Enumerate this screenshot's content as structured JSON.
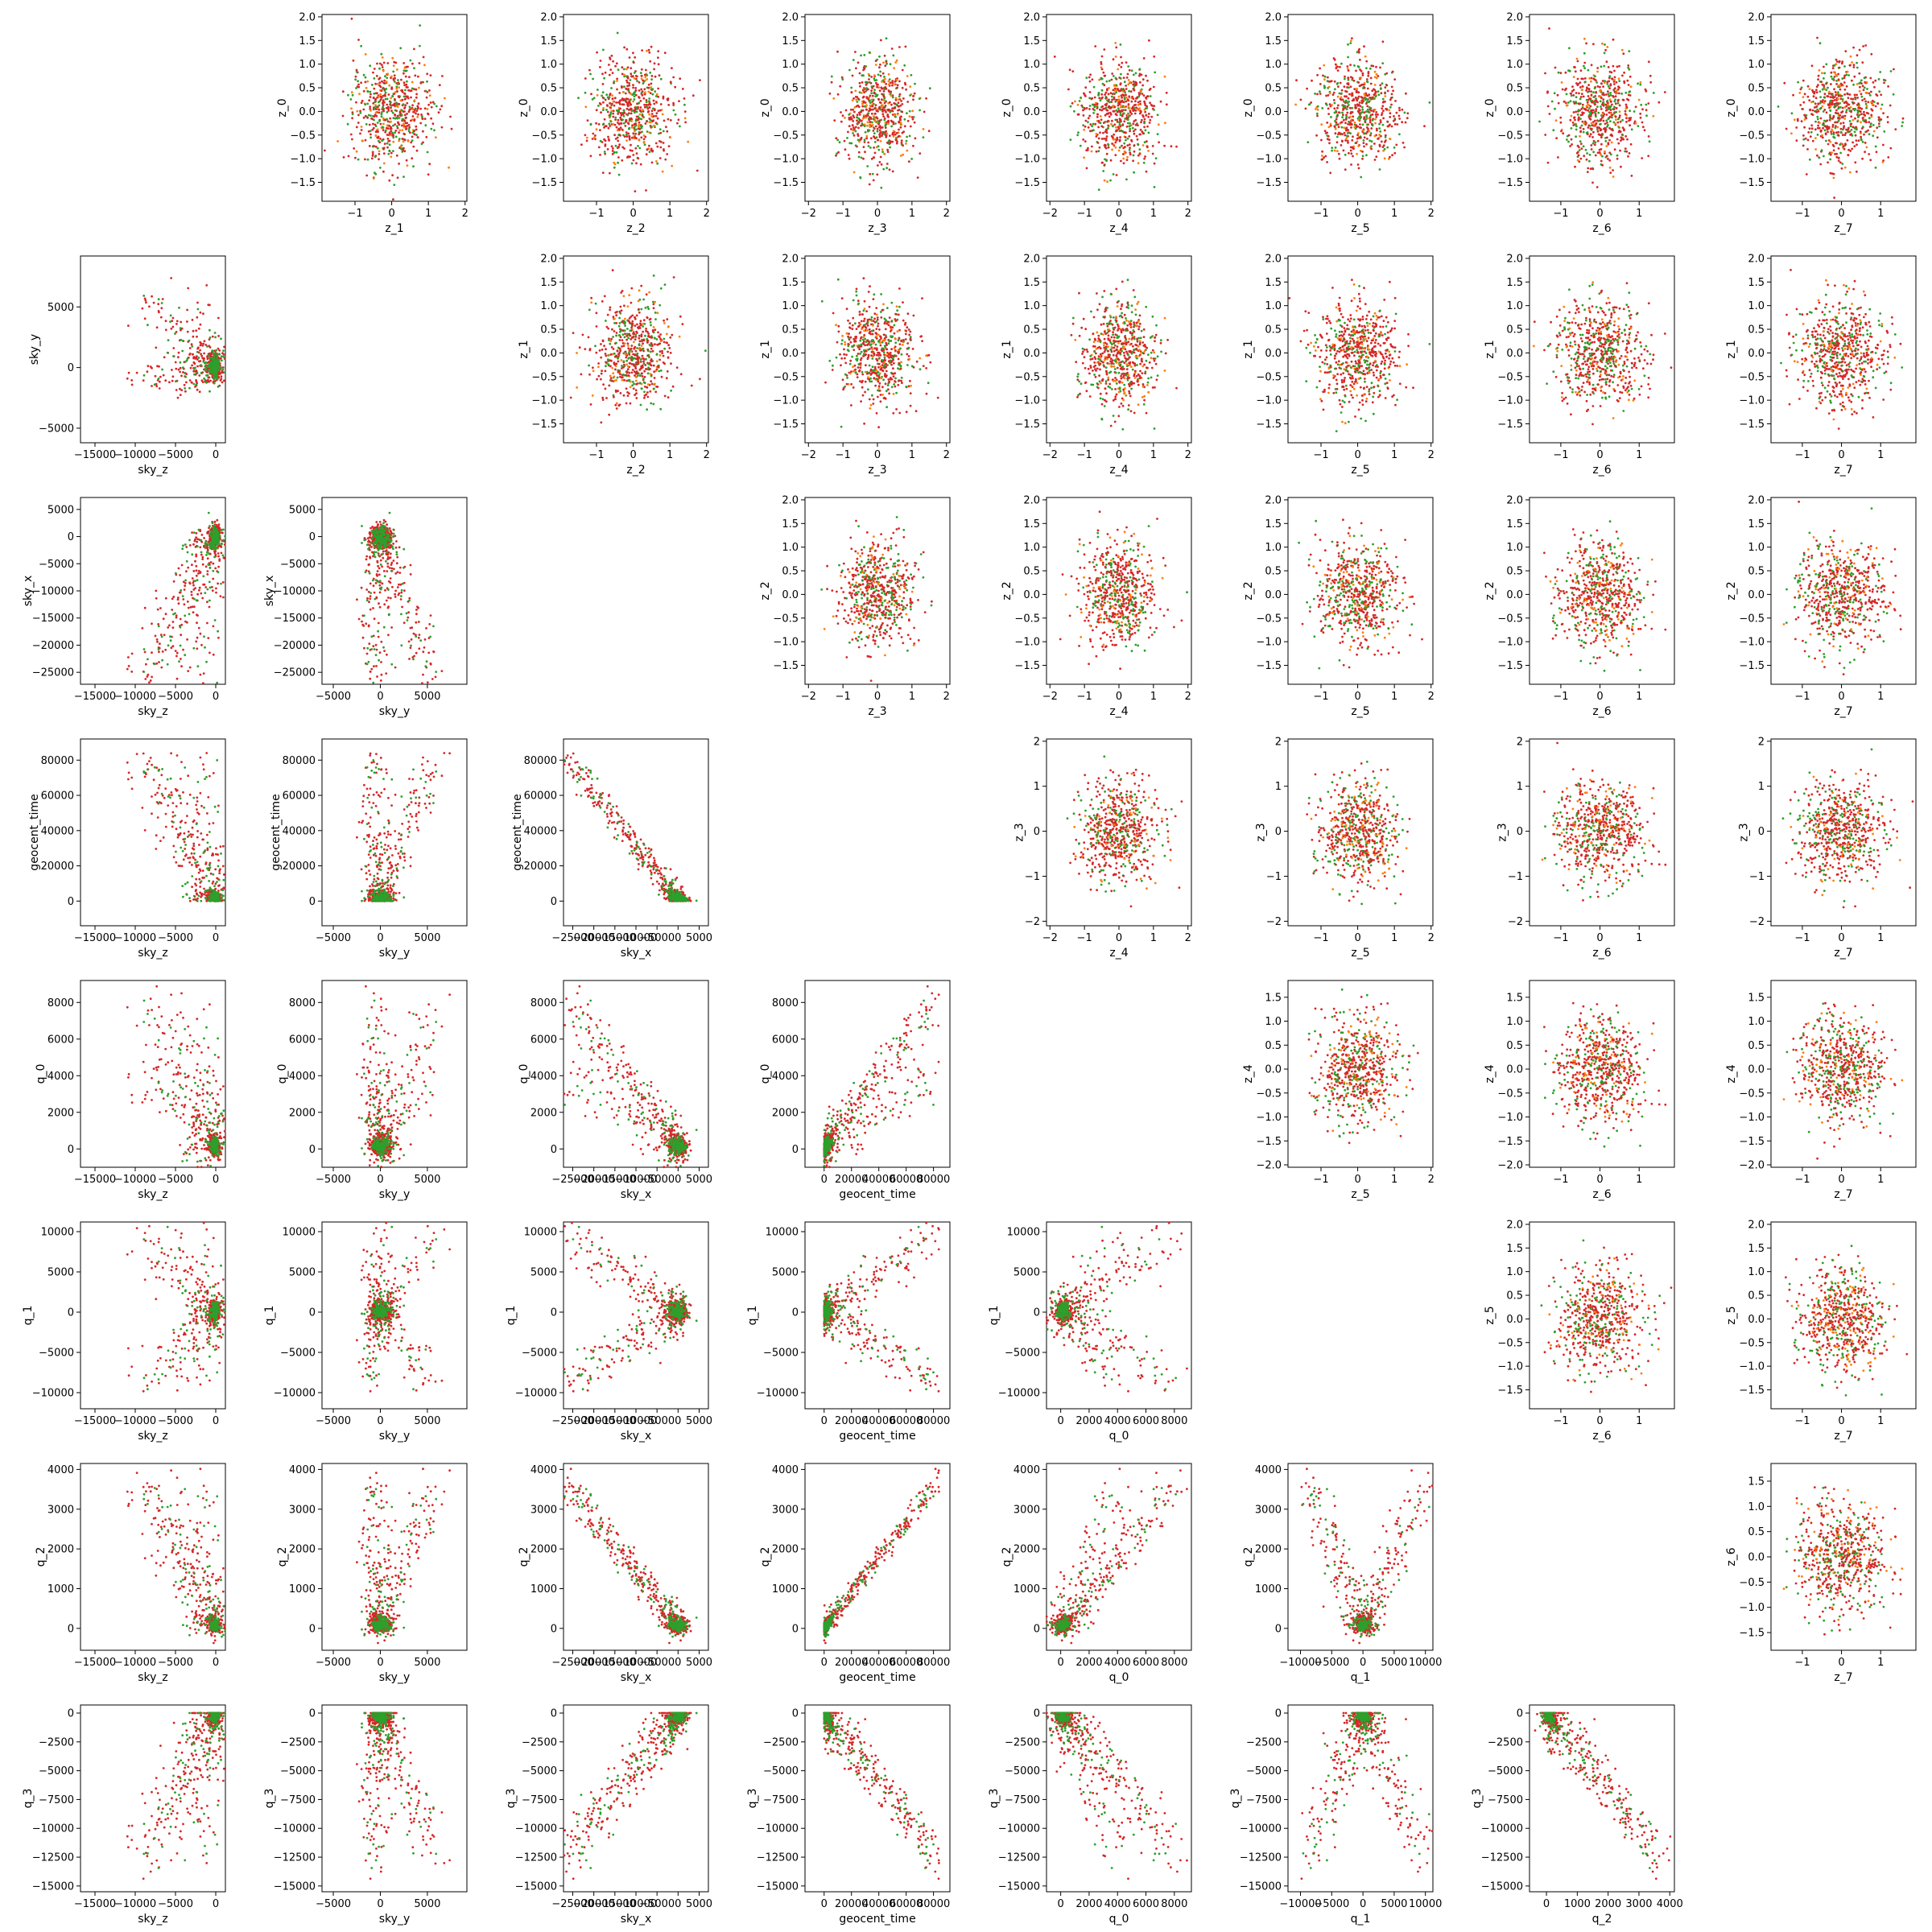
{
  "chart_data": {
    "type": "scatter",
    "layout": "pair-grid",
    "description_note": "",
    "series_colors": {
      "primary": "#d62728",
      "secondary": "#2ca02c",
      "overlap": "#ff7f0e"
    },
    "variables": [
      {
        "key": "sky_z",
        "label": "sky_z",
        "ticks": [
          -15000,
          -10000,
          -5000,
          0
        ],
        "tick_labels": [
          "−15000",
          "−10000",
          "−5000",
          "0"
        ],
        "range": [
          -16800,
          1200
        ]
      },
      {
        "key": "sky_y",
        "label": "sky_y",
        "ticks": [
          -5000,
          0,
          5000
        ],
        "tick_labels": [
          "−5000",
          "0",
          "5000"
        ],
        "range": [
          -6200,
          9200
        ]
      },
      {
        "key": "sky_x",
        "label": "sky_x",
        "ticks": [
          -25000,
          -20000,
          -15000,
          -10000,
          -5000,
          0,
          5000
        ],
        "tick_labels": [
          "−25000",
          "−20000",
          "−15000",
          "−10000",
          "−5000",
          "0",
          "5000"
        ],
        "range": [
          -27200,
          7200
        ]
      },
      {
        "key": "geocent_time",
        "label": "geocent_time",
        "ticks": [
          0,
          20000,
          40000,
          60000,
          80000
        ],
        "tick_labels": [
          "0",
          "20000",
          "40000",
          "60000",
          "80000"
        ],
        "range": [
          -14000,
          92000
        ]
      },
      {
        "key": "q_0",
        "label": "q_0",
        "ticks": [
          0,
          2000,
          4000,
          6000,
          8000
        ],
        "tick_labels": [
          "0",
          "2000",
          "4000",
          "6000",
          "8000"
        ],
        "range": [
          -1000,
          9200
        ]
      },
      {
        "key": "q_1",
        "label": "q_1",
        "ticks": [
          -10000,
          -5000,
          0,
          5000,
          10000
        ],
        "tick_labels": [
          "−10000",
          "−5000",
          "0",
          "5000",
          "10000"
        ],
        "range": [
          -12000,
          11200
        ]
      },
      {
        "key": "q_2",
        "label": "q_2",
        "ticks": [
          0,
          1000,
          2000,
          3000,
          4000
        ],
        "tick_labels": [
          "0",
          "1000",
          "2000",
          "3000",
          "4000"
        ],
        "range": [
          -550,
          4150
        ]
      },
      {
        "key": "q_3",
        "label": "q_3",
        "ticks": [
          -15000,
          -12500,
          -10000,
          -7500,
          -5000,
          -2500,
          0
        ],
        "tick_labels": [
          "−15000",
          "−12500",
          "−10000",
          "−7500",
          "−5000",
          "−2500",
          "0"
        ],
        "range": [
          -15500,
          700
        ]
      }
    ],
    "xlabels": [
      "z_1",
      "z_2",
      "z_3",
      "z_4",
      "z_5",
      "z_6",
      "z_7"
    ],
    "ylabels": [
      "z_0",
      "z_1",
      "z_2",
      "z_3",
      "z_4",
      "z_5",
      "z_6"
    ],
    "z_tick_sets": {
      "z0": {
        "ticks": [
          -1.5,
          -1.0,
          -0.5,
          0.0,
          0.5,
          1.0,
          1.5,
          2.0
        ],
        "tick_labels": [
          "−1.5",
          "−1.0",
          "−0.5",
          "0.0",
          "0.5",
          "1.0",
          "1.5",
          "2.0"
        ],
        "range": [
          -1.9,
          2.05
        ]
      },
      "z3y": {
        "ticks": [
          -2,
          -1,
          0,
          1,
          2
        ],
        "tick_labels": [
          "−2",
          "−1",
          "0",
          "1",
          "2"
        ],
        "range": [
          -2.1,
          2.05
        ]
      },
      "z4y": {
        "ticks": [
          -2.0,
          -1.5,
          -1.0,
          -0.5,
          0.0,
          0.5,
          1.0,
          1.5
        ],
        "tick_labels": [
          "−2.0",
          "−1.5",
          "−1.0",
          "−0.5",
          "0.0",
          "0.5",
          "1.0",
          "1.5"
        ],
        "range": [
          -2.05,
          1.85
        ]
      },
      "z6y": {
        "ticks": [
          -1.5,
          -1.0,
          -0.5,
          0.0,
          0.5,
          1.0,
          1.5
        ],
        "tick_labels": [
          "−1.5",
          "−1.0",
          "−0.5",
          "0.0",
          "0.5",
          "1.0",
          "1.5"
        ],
        "range": [
          -1.85,
          1.85
        ]
      },
      "zx_wide": {
        "ticks": [
          -2,
          -1,
          0,
          1,
          2
        ],
        "tick_labels": [
          "−2",
          "−1",
          "0",
          "1",
          "2"
        ],
        "range": [
          -2.1,
          2.1
        ]
      },
      "zx_mid": {
        "ticks": [
          -1,
          0,
          1,
          2
        ],
        "tick_labels": [
          "−1",
          "0",
          "1",
          "2"
        ],
        "range": [
          -1.9,
          2.05
        ]
      },
      "zx_narrow": {
        "ticks": [
          -1,
          0,
          1
        ],
        "tick_labels": [
          "−1",
          "0",
          "1"
        ],
        "range": [
          -1.8,
          1.9
        ]
      }
    },
    "z_x_ticksets": {
      "z_1": "zx_mid",
      "z_2": "zx_mid",
      "z_3": "zx_wide",
      "z_4": "zx_wide",
      "z_5": "zx_mid",
      "z_6": "zx_narrow",
      "z_7": "zx_narrow"
    },
    "z_y_ticksets": {
      "z_0": "z0",
      "z_1": "z0",
      "z_2": "z0",
      "z_3": "z3y",
      "z_4": "z4y",
      "z_5": "z0",
      "z_6": "z6y"
    }
  }
}
